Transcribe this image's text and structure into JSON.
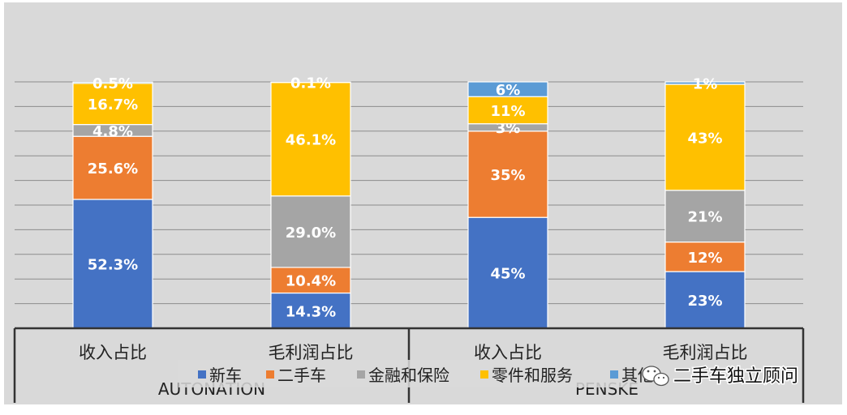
{
  "chart_data": {
    "type": "bar",
    "stacked": true,
    "normalized": true,
    "groups": [
      {
        "name": "AUTONATION",
        "categories": [
          "收入占比",
          "毛利润占比"
        ]
      },
      {
        "name": "PENSKE",
        "categories": [
          "收入占比",
          "毛利润占比"
        ]
      }
    ],
    "series": [
      {
        "name": "新车",
        "color": "#4472C4",
        "values": [
          52.3,
          14.3,
          45,
          23
        ],
        "labels": [
          "52.3%",
          "14.3%",
          "45%",
          "23%"
        ]
      },
      {
        "name": "二手车",
        "color": "#ED7D31",
        "values": [
          25.6,
          10.4,
          35,
          12
        ],
        "labels": [
          "25.6%",
          "10.4%",
          "35%",
          "12%"
        ]
      },
      {
        "name": "金融和保险",
        "color": "#A5A5A5",
        "values": [
          4.8,
          29.0,
          3,
          21
        ],
        "labels": [
          "4.8%",
          "29.0%",
          "3%",
          "21%"
        ]
      },
      {
        "name": "零件和服务",
        "color": "#FFC000",
        "values": [
          16.7,
          46.1,
          11,
          43
        ],
        "labels": [
          "16.7%",
          "46.1%",
          "11%",
          "43%"
        ]
      },
      {
        "name": "其他",
        "color": "#5B9BD5",
        "values": [
          0.5,
          0.1,
          6,
          1
        ],
        "labels": [
          "0.5%",
          "0.1%",
          "6%",
          "1%"
        ]
      }
    ],
    "ylim": [
      0,
      100
    ],
    "grid": true,
    "legend_position": "bottom"
  },
  "watermark": {
    "text": "二手车独立顾问",
    "icon": "wechat-icon"
  }
}
